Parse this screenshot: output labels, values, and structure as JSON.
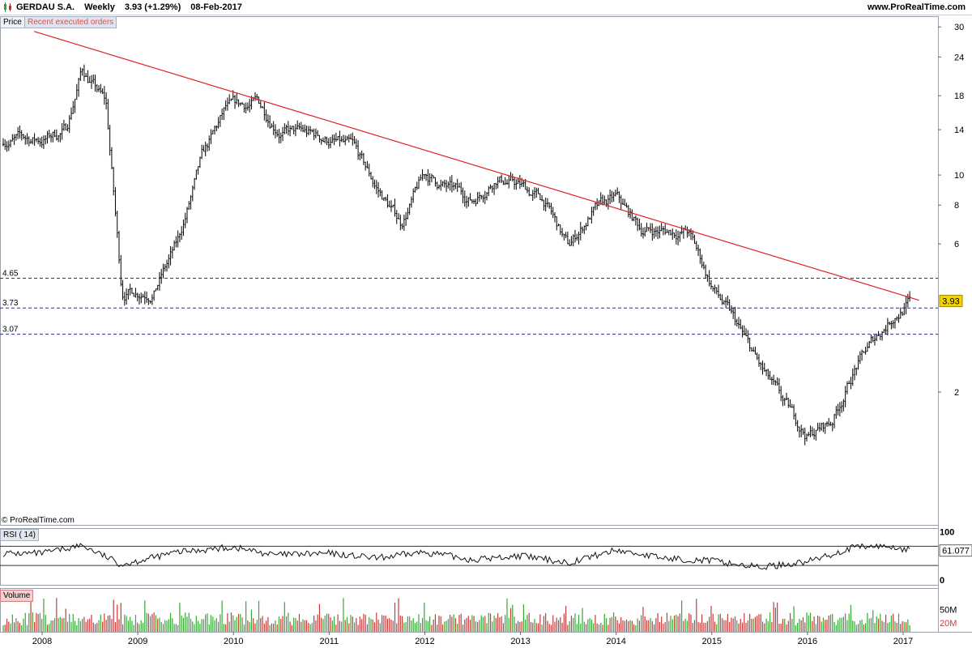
{
  "header": {
    "instrument": "GERDAU S.A.",
    "timeframe": "Weekly",
    "last_quote": "3.93 (+1.29%)",
    "date": "08-Feb-2017",
    "site": "www.ProRealTime.com"
  },
  "labels": {
    "price_tab": "Price",
    "orders_tab": "Recent executed orders",
    "copyright": "© ProRealTime.com",
    "rsi_tab": "RSI ( 14)",
    "volume_tab": "Volume"
  },
  "colors": {
    "trendline": "#e02020",
    "hline": "#2a2f8c",
    "candle": "#000000",
    "last_price_badge": "#f4d400",
    "vol_up": "#35a835",
    "vol_down": "#c83a3a",
    "rsi_overbought_fill": "#8a82d8",
    "rsi_oversold_fill": "#5fae5f"
  },
  "chart_data": [
    {
      "type": "candlestick",
      "panel": "price",
      "scale": "log",
      "x_tick_labels": [
        "2008",
        "2009",
        "2010",
        "2011",
        "2012",
        "2013",
        "2014",
        "2015",
        "2016",
        "2017"
      ],
      "y_tick_labels": [
        "30",
        "24",
        "18",
        "14",
        "10",
        "8",
        "6",
        "2"
      ],
      "x": [
        "2008-01",
        "2008-04",
        "2008-06",
        "2008-09",
        "2008-11",
        "2009-03",
        "2009-06",
        "2009-09",
        "2009-12",
        "2010-04",
        "2010-07",
        "2010-10",
        "2011-01",
        "2011-04",
        "2011-07",
        "2011-10",
        "2012-01",
        "2012-04",
        "2012-07",
        "2012-10",
        "2013-01",
        "2013-04",
        "2013-07",
        "2013-10",
        "2014-01",
        "2014-04",
        "2014-07",
        "2014-10",
        "2015-01",
        "2015-04",
        "2015-07",
        "2015-10",
        "2016-01",
        "2016-04",
        "2016-07",
        "2016-10",
        "2016-12",
        "2017-02"
      ],
      "close": [
        13,
        14,
        22,
        17,
        4.2,
        4.3,
        6,
        11,
        16,
        17,
        14,
        13.5,
        13,
        12,
        9,
        7,
        10,
        9,
        8.3,
        10,
        9.2,
        8.2,
        5.8,
        7.6,
        8.3,
        6.7,
        6.6,
        6.6,
        4.4,
        3.3,
        2.4,
        1.8,
        1.45,
        1.6,
        2.4,
        3.1,
        3.6,
        3.93
      ],
      "last_price": 3.93,
      "horizontal_levels": [
        4.65,
        3.73,
        3.07
      ],
      "trendline": {
        "from": {
          "x": "2007-12",
          "y": 29
        },
        "to": {
          "x": "2017-03",
          "y": 3.95
        }
      }
    },
    {
      "type": "line",
      "panel": "RSI ( 14)",
      "y_tick_labels": [
        "100",
        "0"
      ],
      "levels": [
        70,
        30
      ],
      "last_value": 61.077,
      "x": [
        "2008-01",
        "2008-06",
        "2008-11",
        "2009-06",
        "2010-01",
        "2010-06",
        "2011-01",
        "2011-07",
        "2012-01",
        "2012-07",
        "2013-01",
        "2013-07",
        "2014-01",
        "2014-07",
        "2015-01",
        "2015-07",
        "2016-01",
        "2016-07",
        "2016-11",
        "2017-02"
      ],
      "values": [
        55,
        72,
        32,
        58,
        68,
        52,
        55,
        45,
        58,
        42,
        50,
        36,
        62,
        45,
        40,
        26,
        38,
        68,
        70,
        61
      ]
    },
    {
      "type": "bar",
      "panel": "Volume",
      "y_tick_labels": [
        "50M",
        "20M"
      ]
    }
  ]
}
